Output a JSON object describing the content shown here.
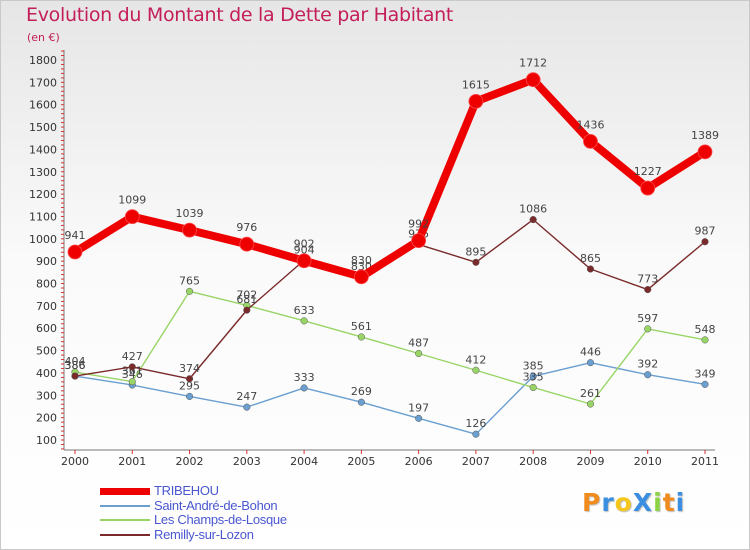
{
  "chart_data": {
    "type": "line",
    "title": "Evolution du Montant de la Dette par Habitant",
    "subtitle": "(en €)",
    "categories": [
      "2000",
      "2001",
      "2002",
      "2003",
      "2004",
      "2005",
      "2006",
      "2007",
      "2008",
      "2009",
      "2010",
      "2011"
    ],
    "ylim": [
      100,
      1800
    ],
    "yticks": [
      100,
      200,
      300,
      400,
      500,
      600,
      700,
      800,
      900,
      1000,
      1100,
      1200,
      1300,
      1400,
      1500,
      1600,
      1700,
      1800
    ],
    "grid": false,
    "legend_position": "bottom-left",
    "series": [
      {
        "name": "TRIBEHOU",
        "color": "#ee0000",
        "values": [
          941,
          1099,
          1039,
          976,
          902,
          830,
          992,
          1615,
          1712,
          1436,
          1227,
          1389
        ]
      },
      {
        "name": "Saint-André-de-Bohon",
        "color": "#6a9fd0",
        "values": [
          386,
          346,
          295,
          247,
          333,
          269,
          197,
          126,
          385,
          446,
          392,
          349
        ]
      },
      {
        "name": "Les Champs-de-Losque",
        "color": "#99d566",
        "values": [
          404,
          361,
          765,
          702,
          633,
          561,
          487,
          412,
          335,
          261,
          597,
          548
        ]
      },
      {
        "name": "Remilly-sur-Lozon",
        "color": "#7a2a2a",
        "values": [
          386,
          427,
          374,
          681,
          904,
          830,
          975,
          895,
          1086,
          865,
          773,
          987
        ]
      }
    ]
  },
  "brand": {
    "text": "ProXiti",
    "letters": [
      "P",
      "r",
      "o",
      "X",
      "i",
      "t",
      "i"
    ],
    "colors": [
      "#f08c1e",
      "#3b8fe0",
      "#f5c61b",
      "#3b8fe0",
      "#8bd342",
      "#f08c1e",
      "#3b8fe0"
    ]
  }
}
